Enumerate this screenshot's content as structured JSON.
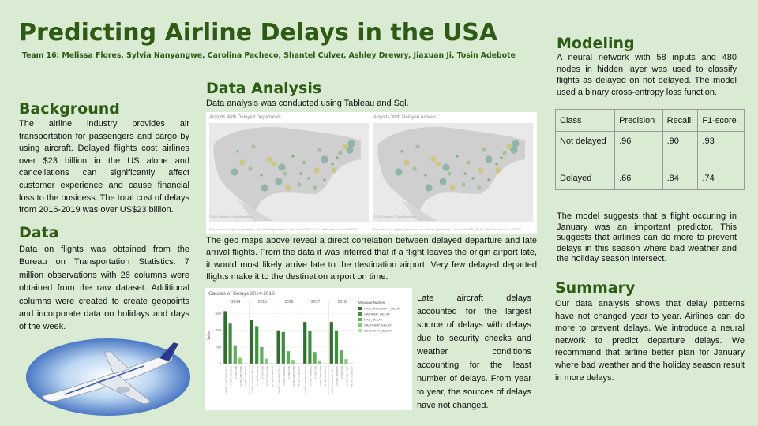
{
  "poster": {
    "title": "Predicting Airline Delays in the USA",
    "team": "Team 16: Melissa Flores, Sylvia Nanyangwe, Carolina Pacheco, Shantel Culver, Ashley Drewry, Jiaxuan Ji, Tosin Adebote"
  },
  "background": {
    "heading": "Background",
    "text": "The airline industry provides air transportation for passengers and cargo by using aircraft. Delayed flights cost airlines over $23 billion in the US alone and cancellations can significantly affect customer experience and cause financial loss to the business. The total cost of delays from 2016-2019 was over US$23 billion."
  },
  "data_section": {
    "heading": "Data",
    "text": "Data on flights was obtained from the Bureau on Transportation Statistics. 7 million observations with 28 columns were obtained from the raw dataset. Additional columns were created to create geopoints and incorporate data on holidays and days of the week."
  },
  "analysis": {
    "heading": "Data Analysis",
    "intro": "Data analysis was conducted using Tableau and Sql.",
    "map_left_title": "Airports With Delayed Departurals",
    "map_right_title": "Airports With Delayed Arrivals",
    "map_copyright": "© 2021 Mapbox © OpenStreetMap",
    "map_footnote": "Map based on Longitude (generated) and Latitude (generated). Color shows ARR_DELAY. Details are shown for ORIGIN.",
    "maps_caption": "The geo maps above reveal a direct correlation between delayed departure and late arrival flights. From the data it was inferred that if a flight leaves the origin airport late, it would most likely arrive late to the destination airport. Very few delayed departed flights make it to the destination airport on time.",
    "causes_text": "Late aircraft delays accounted for the largest source of delays with delays due to security checks and weather conditions accounting for the least number of delays. From year to year, the sources of delays have not changed."
  },
  "modeling": {
    "heading": "Modeling",
    "text": "A neural network with 58 inputs and 480 nodes in hidden layer was used to classify flights as delayed on not delayed. The model used a binary cross-entropy loss function.",
    "table": {
      "headers": [
        "Class",
        "Precision",
        "Recall",
        "F1-score"
      ],
      "rows": [
        [
          "Not delayed",
          ".96",
          ".90",
          ".93"
        ],
        [
          "Delayed",
          ".66",
          ".84",
          ".74"
        ]
      ]
    },
    "finding": "The model suggests that a flight occuring in January was an important predictor. This suggests that airlines can do more to prevent delays in this season where bad weather and the holiday season intersect."
  },
  "summary": {
    "heading": "Summary",
    "text": "Our data analysis shows that delay patterns have not changed year to year. Airlines can do more to prevent delays. We introduce a neural network to predict departure delays. We recommend that airline better plan for January where bad weather and the holiday season result in more delays."
  },
  "colors": {
    "heading_green": "#2e5a14",
    "background": "#d9ebd3",
    "bar_series": [
      "#2f6e2f",
      "#3f8f3f",
      "#5fae5a",
      "#86c97e",
      "#b3e0a8"
    ]
  },
  "chart_data": {
    "type": "bar",
    "title": "Causes of Delays 2014-2018",
    "ylabel": "Value",
    "yticks": [
      "600",
      "400",
      "200",
      "0"
    ],
    "ylim": [
      0,
      700
    ],
    "legend_title": "Measure Names",
    "legend_position": "right",
    "categories": [
      "2014",
      "2015",
      "2016",
      "2017",
      "2018"
    ],
    "tick_labels": [
      "LATE_AIRCRAFT_DELAY",
      "CARRIER_DELAY",
      "NAS_DELAY",
      "WEATHER_DELAY",
      "SECURITY_DELAY"
    ],
    "series": [
      {
        "name": "LATE_AIRCRAFT_DELAY",
        "values": [
          630,
          520,
          400,
          500,
          500
        ]
      },
      {
        "name": "CARRIER_DELAY",
        "values": [
          480,
          450,
          380,
          390,
          400
        ]
      },
      {
        "name": "NAS_DELAY",
        "values": [
          220,
          200,
          150,
          140,
          160
        ]
      },
      {
        "name": "WEATHER_DELAY",
        "values": [
          70,
          60,
          45,
          40,
          55
        ]
      },
      {
        "name": "SECURITY_DELAY",
        "values": [
          5,
          5,
          5,
          5,
          5
        ]
      }
    ]
  }
}
